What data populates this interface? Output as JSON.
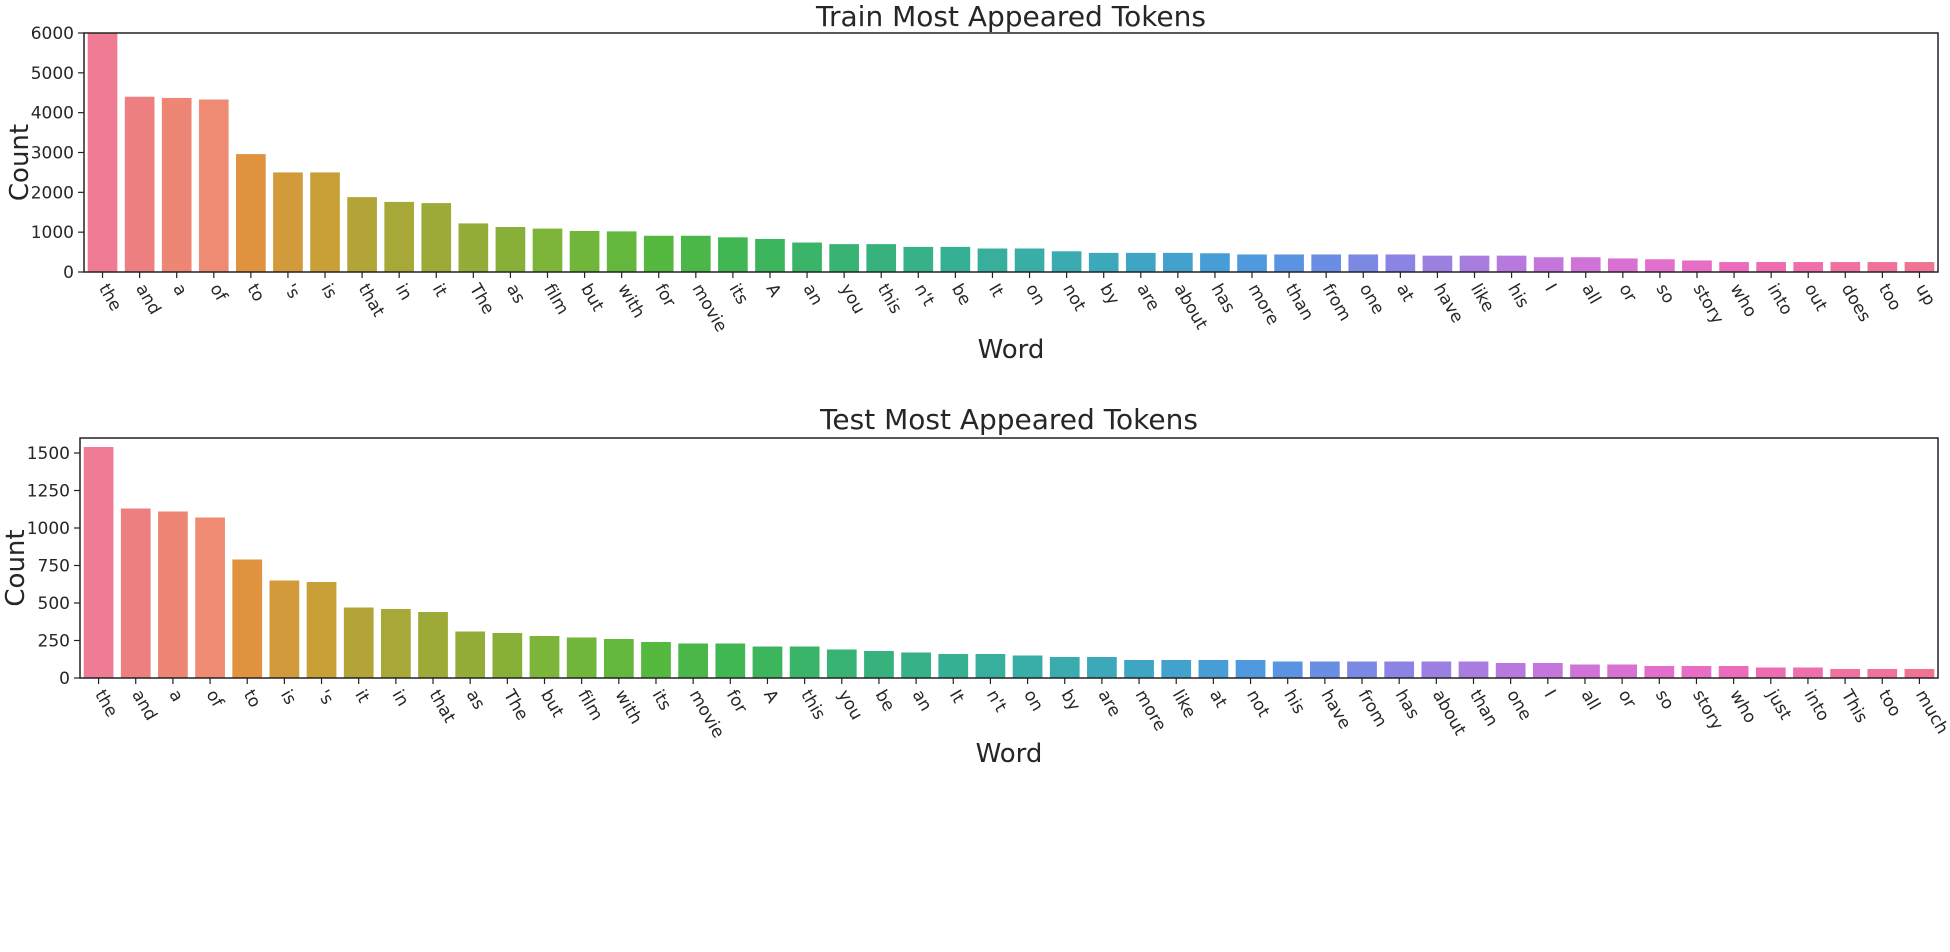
{
  "chart_data": [
    {
      "type": "bar",
      "title": "Train Most Appeared Tokens",
      "xlabel": "Word",
      "ylabel": "Count",
      "ylim": [
        0,
        6000
      ],
      "yticks": [
        0,
        1000,
        2000,
        3000,
        4000,
        5000,
        6000
      ],
      "categories": [
        "the",
        "and",
        "a",
        "of",
        "to",
        "'s",
        "is",
        "that",
        "in",
        "it",
        "The",
        "as",
        "film",
        "but",
        "with",
        "for",
        "movie",
        "its",
        "A",
        "an",
        "you",
        "this",
        "n't",
        "be",
        "It",
        "on",
        "not",
        "by",
        "are",
        "about",
        "has",
        "more",
        "than",
        "from",
        "one",
        "at",
        "have",
        "like",
        "his",
        "I",
        "all",
        "or",
        "so",
        "story",
        "who",
        "into",
        "out",
        "does",
        "too",
        "up"
      ],
      "values": [
        6000,
        4400,
        4370,
        4330,
        2960,
        2500,
        2500,
        1880,
        1760,
        1730,
        1220,
        1130,
        1090,
        1030,
        1020,
        910,
        910,
        870,
        830,
        740,
        700,
        700,
        630,
        630,
        590,
        590,
        520,
        480,
        480,
        480,
        470,
        440,
        440,
        440,
        440,
        440,
        410,
        410,
        410,
        370,
        370,
        340,
        320,
        290,
        250,
        250,
        250,
        250,
        250,
        250
      ],
      "bar_colors": [
        "#f07b94",
        "#ee7f81",
        "#ee8675",
        "#ee8b72",
        "#e0923f",
        "#d29a3a",
        "#c9a037",
        "#b3a438",
        "#a8a838",
        "#9daa38",
        "#93ad38",
        "#88b039",
        "#7db43a",
        "#70b63b",
        "#62b73c",
        "#55b83f",
        "#4ab748",
        "#40b752",
        "#3cb55d",
        "#3ab468",
        "#38b373",
        "#37b27d",
        "#36b188",
        "#36b092",
        "#37af9c",
        "#38aea6",
        "#3aacb0",
        "#3ca9ba",
        "#3ea6c4",
        "#42a2cd",
        "#479ed6",
        "#4f99de",
        "#5a93e2",
        "#6a8ee4",
        "#7b88e4",
        "#8c84e4",
        "#9b80e2",
        "#a97ce0",
        "#b879de",
        "#c476dc",
        "#cf73d8",
        "#d971d3",
        "#e26fcc",
        "#e86dc4",
        "#ec6cbb",
        "#ee6cb2",
        "#f06ea9",
        "#f070a1",
        "#f07299",
        "#f07491"
      ],
      "grid": false,
      "legend": "none"
    },
    {
      "type": "bar",
      "title": "Test Most Appeared Tokens",
      "xlabel": "Word",
      "ylabel": "Count",
      "ylim": [
        0,
        1600
      ],
      "yticks": [
        0,
        250,
        500,
        750,
        1000,
        1250,
        1500
      ],
      "categories": [
        "the",
        "and",
        "a",
        "of",
        "to",
        "is",
        "'s",
        "it",
        "in",
        "that",
        "as",
        "The",
        "but",
        "film",
        "with",
        "its",
        "movie",
        "for",
        "A",
        "this",
        "you",
        "be",
        "an",
        "It",
        "n't",
        "on",
        "by",
        "are",
        "more",
        "like",
        "at",
        "not",
        "his",
        "have",
        "from",
        "has",
        "about",
        "than",
        "one",
        "I",
        "all",
        "or",
        "so",
        "story",
        "who",
        "just",
        "into",
        "This",
        "too",
        "much"
      ],
      "values": [
        1540,
        1130,
        1110,
        1070,
        790,
        650,
        640,
        470,
        460,
        440,
        310,
        300,
        280,
        270,
        260,
        240,
        230,
        230,
        210,
        210,
        190,
        180,
        170,
        160,
        160,
        150,
        140,
        140,
        120,
        120,
        120,
        120,
        110,
        110,
        110,
        110,
        110,
        110,
        100,
        100,
        90,
        90,
        80,
        80,
        80,
        70,
        70,
        60,
        60,
        60
      ],
      "bar_colors": [
        "#f07b94",
        "#ee7f81",
        "#ee8675",
        "#ee8b72",
        "#e0923f",
        "#d29a3a",
        "#c9a037",
        "#b3a438",
        "#a8a838",
        "#9daa38",
        "#93ad38",
        "#88b039",
        "#7db43a",
        "#70b63b",
        "#62b73c",
        "#55b83f",
        "#4ab748",
        "#40b752",
        "#3cb55d",
        "#3ab468",
        "#38b373",
        "#37b27d",
        "#36b188",
        "#36b092",
        "#37af9c",
        "#38aea6",
        "#3aacb0",
        "#3ca9ba",
        "#3ea6c4",
        "#42a2cd",
        "#479ed6",
        "#4f99de",
        "#5a93e2",
        "#6a8ee4",
        "#7b88e4",
        "#8c84e4",
        "#9b80e2",
        "#a97ce0",
        "#b879de",
        "#c476dc",
        "#cf73d8",
        "#d971d3",
        "#e26fcc",
        "#e86dc4",
        "#ec6cbb",
        "#ee6cb2",
        "#f06ea9",
        "#f070a1",
        "#f07299",
        "#f07491"
      ],
      "grid": false,
      "legend": "none"
    }
  ]
}
